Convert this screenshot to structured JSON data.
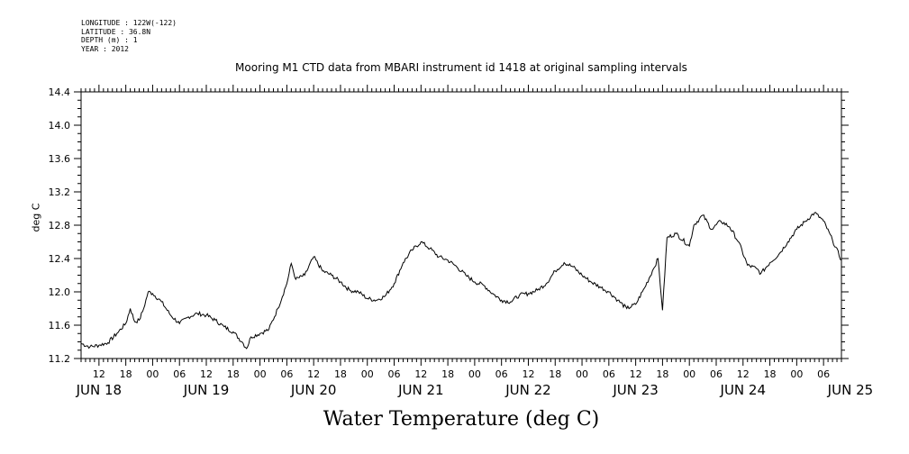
{
  "meta": {
    "longitude": "LONGITUDE : 122W(-122)",
    "latitude": "LATITUDE : 36.8N",
    "depth": "DEPTH (m) : 1",
    "year": "YEAR : 2012"
  },
  "chart_data": {
    "type": "line",
    "title": "Mooring M1 CTD data from MBARI instrument id 1418 at original sampling intervals",
    "xlabel": "Water Temperature (deg C)",
    "ylabel": "deg C",
    "x_unit": "hours",
    "xlim": [
      "JUN 18 08:00",
      "JUN 25 10:00"
    ],
    "ylim": [
      11.2,
      14.4
    ],
    "y_ticks": [
      "11.2",
      "11.6",
      "12.0",
      "12.4",
      "12.8",
      "13.2",
      "13.6",
      "14.0",
      "14.4"
    ],
    "hour_ticks": [
      "12",
      "18",
      "00",
      "06",
      "12",
      "18",
      "00",
      "06",
      "12",
      "18",
      "00",
      "06",
      "12",
      "18",
      "00",
      "06",
      "12",
      "18",
      "00",
      "06",
      "12",
      "18",
      "00",
      "06",
      "12",
      "18",
      "00",
      "06"
    ],
    "day_labels": [
      "JUN 18",
      "JUN 19",
      "JUN 20",
      "JUN 21",
      "JUN 22",
      "JUN 23",
      "JUN 24",
      "JUN 25"
    ],
    "grid": false,
    "series": [
      {
        "name": "",
        "points": [
          [
            "JUN 18 08:00",
            11.38
          ],
          [
            "JUN 18 10:00",
            11.34
          ],
          [
            "JUN 18 12:00",
            11.36
          ],
          [
            "JUN 18 14:00",
            11.39
          ],
          [
            "JUN 18 16:00",
            11.5
          ],
          [
            "JUN 18 18:00",
            11.62
          ],
          [
            "JUN 18 19:00",
            11.8
          ],
          [
            "JUN 18 20:00",
            11.64
          ],
          [
            "JUN 18 21:00",
            11.66
          ],
          [
            "JUN 18 22:00",
            11.8
          ],
          [
            "JUN 18 23:00",
            12.0
          ],
          [
            "JUN 19 00:00",
            11.98
          ],
          [
            "JUN 19 02:00",
            11.88
          ],
          [
            "JUN 19 04:00",
            11.72
          ],
          [
            "JUN 19 06:00",
            11.62
          ],
          [
            "JUN 19 08:00",
            11.7
          ],
          [
            "JUN 19 10:00",
            11.74
          ],
          [
            "JUN 19 12:00",
            11.72
          ],
          [
            "JUN 19 14:00",
            11.66
          ],
          [
            "JUN 19 16:00",
            11.58
          ],
          [
            "JUN 19 18:00",
            11.52
          ],
          [
            "JUN 19 20:00",
            11.4
          ],
          [
            "JUN 19 21:00",
            11.32
          ],
          [
            "JUN 19 22:00",
            11.46
          ],
          [
            "JUN 20 00:00",
            11.5
          ],
          [
            "JUN 20 02:00",
            11.55
          ],
          [
            "JUN 20 04:00",
            11.8
          ],
          [
            "JUN 20 06:00",
            12.1
          ],
          [
            "JUN 20 07:00",
            12.34
          ],
          [
            "JUN 20 08:00",
            12.15
          ],
          [
            "JUN 20 10:00",
            12.2
          ],
          [
            "JUN 20 12:00",
            12.42
          ],
          [
            "JUN 20 14:00",
            12.25
          ],
          [
            "JUN 20 16:00",
            12.2
          ],
          [
            "JUN 20 18:00",
            12.12
          ],
          [
            "JUN 20 20:00",
            12.02
          ],
          [
            "JUN 20 22:00",
            12.0
          ],
          [
            "JUN 21 00:00",
            11.92
          ],
          [
            "JUN 21 02:00",
            11.9
          ],
          [
            "JUN 21 04:00",
            11.95
          ],
          [
            "JUN 21 06:00",
            12.1
          ],
          [
            "JUN 21 08:00",
            12.35
          ],
          [
            "JUN 21 10:00",
            12.5
          ],
          [
            "JUN 21 12:00",
            12.6
          ],
          [
            "JUN 21 14:00",
            12.52
          ],
          [
            "JUN 21 16:00",
            12.42
          ],
          [
            "JUN 21 18:00",
            12.38
          ],
          [
            "JUN 21 20:00",
            12.3
          ],
          [
            "JUN 21 22:00",
            12.2
          ],
          [
            "JUN 22 00:00",
            12.12
          ],
          [
            "JUN 22 02:00",
            12.08
          ],
          [
            "JUN 22 04:00",
            11.98
          ],
          [
            "JUN 22 06:00",
            11.9
          ],
          [
            "JUN 22 08:00",
            11.88
          ],
          [
            "JUN 22 10:00",
            11.96
          ],
          [
            "JUN 22 12:00",
            11.98
          ],
          [
            "JUN 22 14:00",
            12.02
          ],
          [
            "JUN 22 16:00",
            12.1
          ],
          [
            "JUN 22 18:00",
            12.25
          ],
          [
            "JUN 22 20:00",
            12.35
          ],
          [
            "JUN 22 22:00",
            12.3
          ],
          [
            "JUN 23 00:00",
            12.2
          ],
          [
            "JUN 23 02:00",
            12.12
          ],
          [
            "JUN 23 04:00",
            12.06
          ],
          [
            "JUN 23 06:00",
            12.0
          ],
          [
            "JUN 23 08:00",
            11.9
          ],
          [
            "JUN 23 10:00",
            11.8
          ],
          [
            "JUN 23 12:00",
            11.85
          ],
          [
            "JUN 23 14:00",
            12.05
          ],
          [
            "JUN 23 16:00",
            12.28
          ],
          [
            "JUN 23 17:00",
            12.4
          ],
          [
            "JUN 23 18:00",
            11.78
          ],
          [
            "JUN 23 19:00",
            12.65
          ],
          [
            "JUN 23 21:00",
            12.7
          ],
          [
            "JUN 24 00:00",
            12.55
          ],
          [
            "JUN 24 01:00",
            12.8
          ],
          [
            "JUN 24 03:00",
            12.92
          ],
          [
            "JUN 24 05:00",
            12.75
          ],
          [
            "JUN 24 07:00",
            12.85
          ],
          [
            "JUN 24 09:00",
            12.78
          ],
          [
            "JUN 24 11:00",
            12.6
          ],
          [
            "JUN 24 13:00",
            12.32
          ],
          [
            "JUN 24 15:00",
            12.28
          ],
          [
            "JUN 24 16:00",
            12.22
          ],
          [
            "JUN 24 18:00",
            12.35
          ],
          [
            "JUN 24 20:00",
            12.45
          ],
          [
            "JUN 24 22:00",
            12.6
          ],
          [
            "JUN 25 00:00",
            12.75
          ],
          [
            "JUN 25 02:00",
            12.85
          ],
          [
            "JUN 25 04:00",
            12.95
          ],
          [
            "JUN 25 06:00",
            12.85
          ],
          [
            "JUN 25 08:00",
            12.62
          ],
          [
            "JUN 25 10:00",
            12.38
          ]
        ]
      }
    ]
  }
}
